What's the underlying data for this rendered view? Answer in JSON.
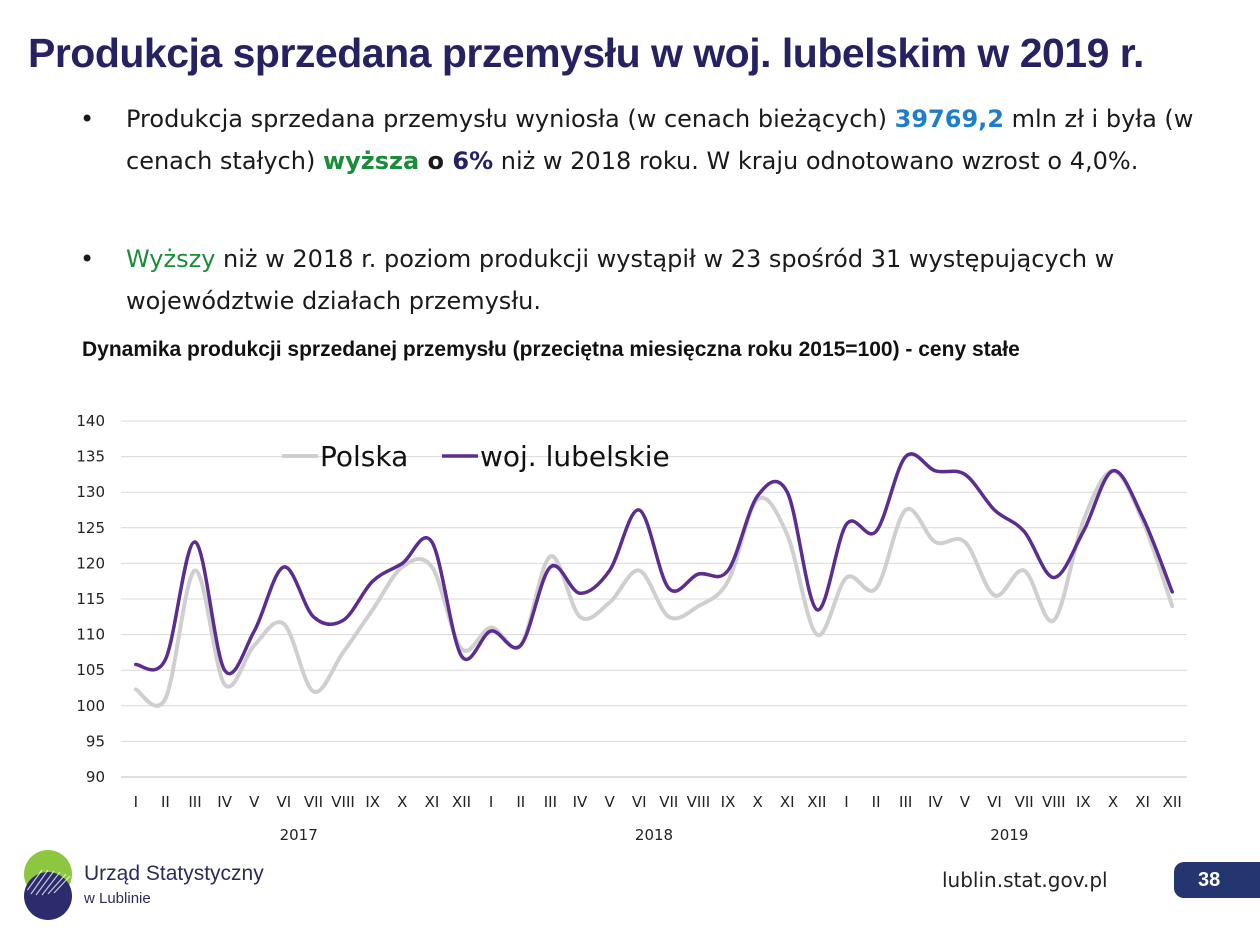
{
  "slide": {
    "title": "Produkcja sprzedana przemysłu w woj. lubelskim w 2019 r.",
    "bullet1": {
      "marker": "•",
      "p1": "Produkcja sprzedana przemysłu wyniosła (w cenach bieżących) ",
      "value": "39769,2",
      "p2": " mln zł i była (w cenach stałych) ",
      "higher": "wyższa",
      "p3": " o ",
      "pct": "6%",
      "p4": " niż w 2018 roku. W kraju odnotowano wzrost o 4,0%."
    },
    "bullet2": {
      "marker": "•",
      "higher": "Wyższy",
      "p1": " niż w 2018 r. poziom produkcji wystąpił w 23 spośród 31 występujących w województwie działach przemysłu."
    },
    "chart_title": "Dynamika produkcji sprzedanej przemysłu (przeciętna miesięczna roku 2015=100) - ceny stałe",
    "footer": {
      "org_line1": "Urząd Statystyczny",
      "org_line2": "w Lublinie",
      "url": "lublin.stat.gov.pl",
      "page": "38"
    },
    "colors": {
      "title": "#262262",
      "accent_blue": "#1f7ec6",
      "accent_green": "#1a8c3a",
      "polska_line": "#cfcfcf",
      "lubelskie_line": "#5b2d8e",
      "page_badge": "#24356f"
    }
  },
  "chart_data": {
    "type": "line",
    "title": "Dynamika produkcji sprzedanej przemysłu (przeciętna miesięczna roku 2015=100) - ceny stałe",
    "categories": [
      "I",
      "II",
      "III",
      "IV",
      "V",
      "VI",
      "VII",
      "VIII",
      "IX",
      "X",
      "XI",
      "XII",
      "I",
      "II",
      "III",
      "IV",
      "V",
      "VI",
      "VII",
      "VIII",
      "IX",
      "X",
      "XI",
      "XII",
      "I",
      "II",
      "III",
      "IV",
      "V",
      "VI",
      "VII",
      "VIII",
      "IX",
      "X",
      "XI",
      "XII"
    ],
    "year_groups": [
      {
        "label": "2017",
        "start": 0,
        "end": 11
      },
      {
        "label": "2018",
        "start": 12,
        "end": 23
      },
      {
        "label": "2019",
        "start": 24,
        "end": 35
      }
    ],
    "series": [
      {
        "name": "Polska",
        "color": "#cfcfcf",
        "values": [
          102.3,
          101.0,
          119.0,
          103.0,
          108.5,
          111.5,
          102.0,
          107.5,
          113.5,
          119.5,
          119.5,
          108.0,
          111.0,
          108.5,
          121.0,
          112.5,
          114.5,
          119.0,
          112.5,
          114.0,
          117.5,
          129.0,
          124.0,
          110.0,
          118.0,
          116.5,
          127.5,
          123.0,
          123.0,
          115.5,
          119.0,
          112.0,
          126.0,
          133.0,
          126.0,
          114.0
        ]
      },
      {
        "name": "woj. lubelskie",
        "color": "#5b2d8e",
        "values": [
          105.8,
          106.5,
          123.0,
          105.0,
          110.5,
          119.5,
          112.5,
          112.0,
          117.5,
          120.0,
          123.0,
          107.0,
          110.5,
          108.5,
          119.5,
          115.8,
          119.0,
          127.5,
          116.5,
          118.5,
          119.0,
          129.5,
          130.0,
          113.5,
          125.5,
          124.5,
          135.0,
          133.0,
          132.5,
          127.5,
          124.5,
          118.0,
          124.5,
          133.0,
          126.5,
          116.0
        ]
      }
    ],
    "ylim": [
      90,
      140
    ],
    "yticks": [
      90,
      95,
      100,
      105,
      110,
      115,
      120,
      125,
      130,
      135,
      140
    ],
    "grid": true,
    "legend_position": "top-left"
  }
}
